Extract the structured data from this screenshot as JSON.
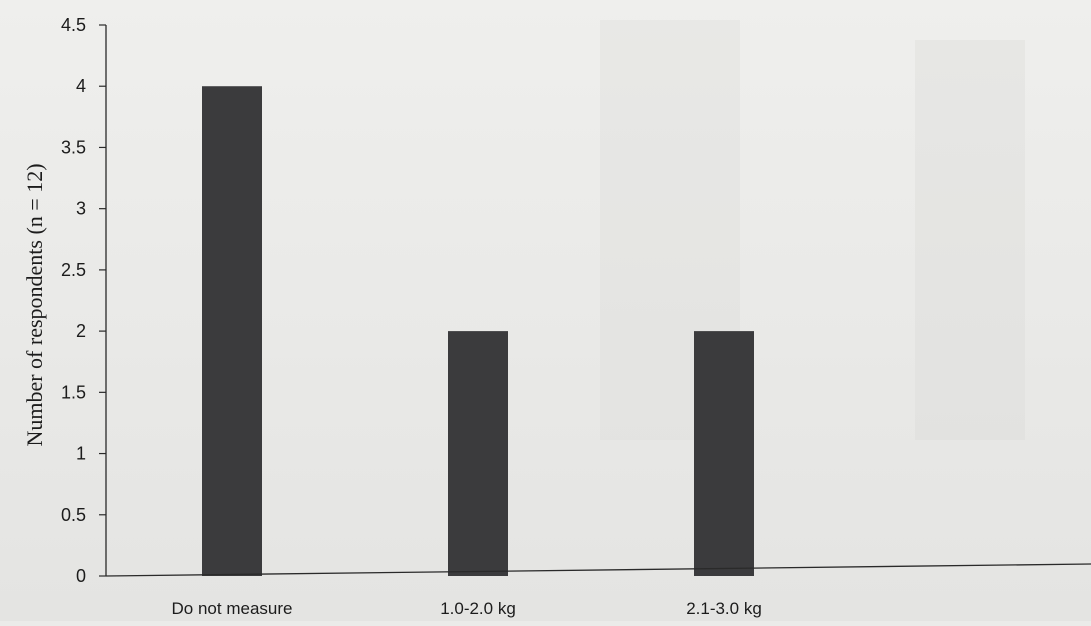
{
  "chart_data": {
    "type": "bar",
    "title": "",
    "xlabel": "",
    "ylabel": "Number of respondents (n = 12)",
    "categories": [
      "Do not measure",
      "1.0-2.0 kg",
      "2.1-3.0 kg"
    ],
    "values": [
      4,
      2,
      2
    ],
    "ylim": [
      0,
      4.5
    ],
    "yticks": [
      "0",
      "0.5",
      "1",
      "1.5",
      "2",
      "2.5",
      "3",
      "3.5",
      "4",
      "4.5"
    ],
    "bar_color": "#3b3b3d",
    "grid": false,
    "legend": "none"
  }
}
